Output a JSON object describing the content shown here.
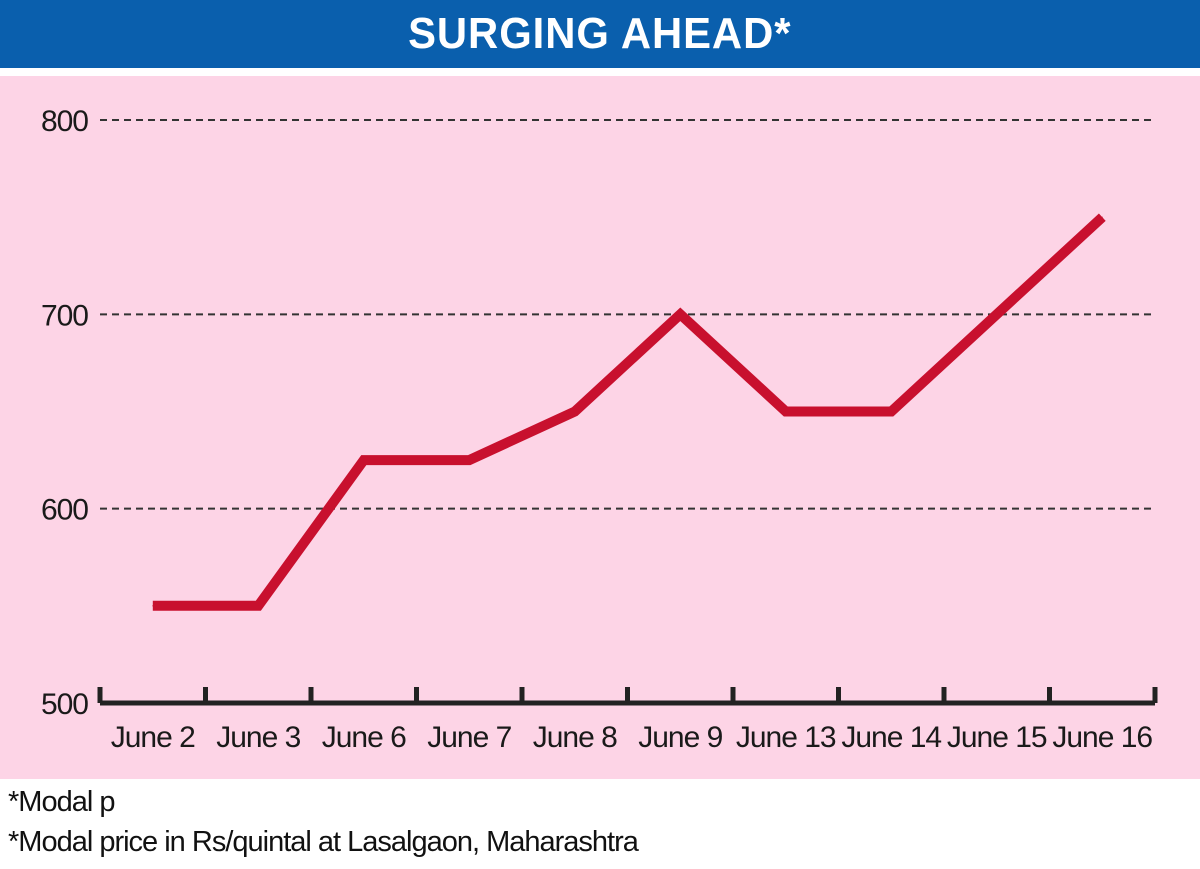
{
  "title": "SURGING AHEAD*",
  "notes": [
    "*Modal p",
    "*Modal price in Rs/quintal at Lasalgaon, Maharashtra"
  ],
  "colors": {
    "title_bar": "#0a5fad",
    "title_text": "#ffffff",
    "plot_background": "#fdd4e6",
    "line": "#c8102e",
    "axis": "#222222",
    "grid": "#333333"
  },
  "chart_data": {
    "type": "line",
    "title": "SURGING AHEAD*",
    "xlabel": "",
    "ylabel": "",
    "categories": [
      "June 2",
      "June 3",
      "June 6",
      "June 7",
      "June 8",
      "June 9",
      "June 13",
      "June 14",
      "June 15",
      "June 16"
    ],
    "series": [
      {
        "values": [
          550,
          550,
          625,
          625,
          650,
          700,
          650,
          650,
          700,
          750
        ]
      }
    ],
    "ylim": [
      500,
      800
    ],
    "yticks": [
      500,
      600,
      700,
      800
    ],
    "grid": "dashed horizontal",
    "legend": "none"
  }
}
